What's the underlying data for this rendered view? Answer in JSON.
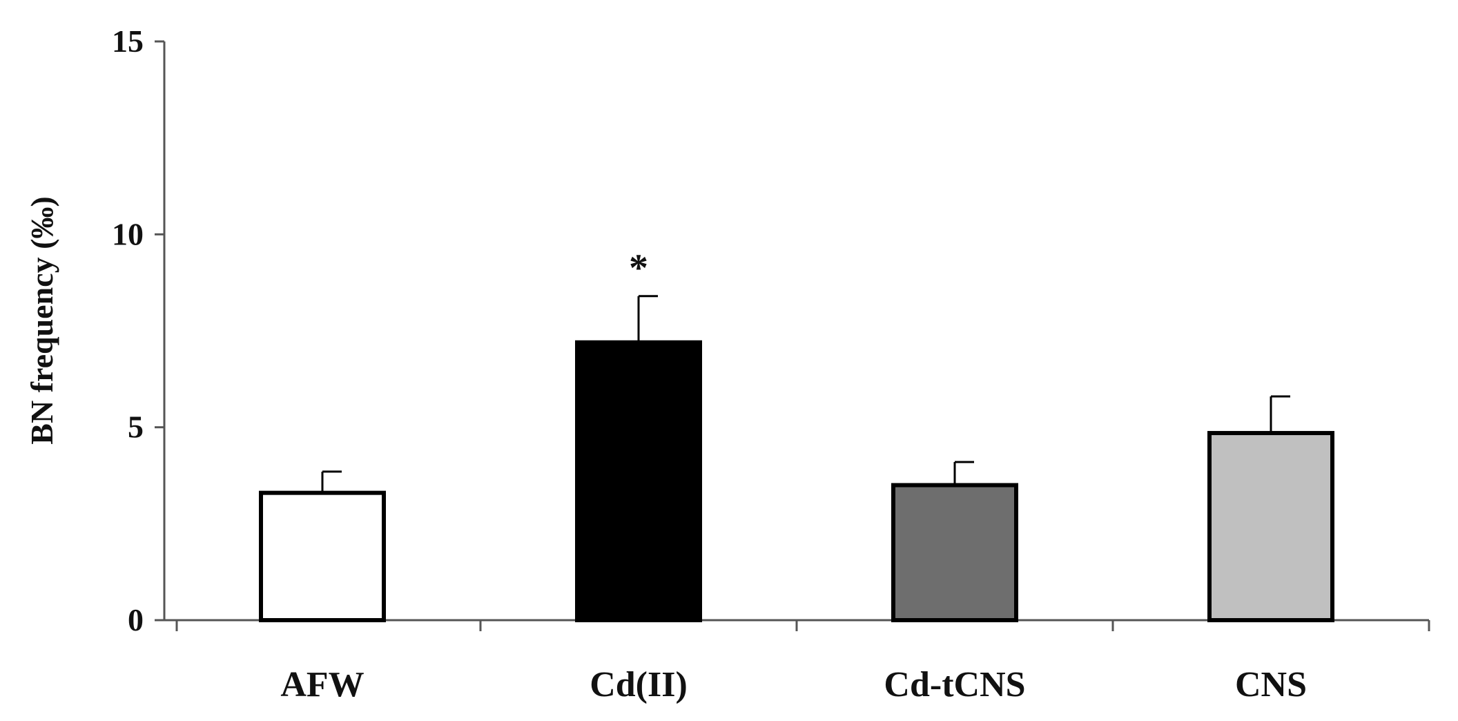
{
  "chart_data": {
    "type": "bar",
    "title": "",
    "xlabel": "",
    "ylabel": "BN frequency (‰)",
    "ylim": [
      0,
      15
    ],
    "yticks": [
      0,
      5,
      10,
      15
    ],
    "grid": false,
    "categories": [
      "AFW",
      "Cd(II)",
      "Cd-tCNS",
      "CNS"
    ],
    "values": [
      3.3,
      7.2,
      3.5,
      4.85
    ],
    "errors": [
      0.55,
      1.2,
      0.6,
      0.95
    ],
    "bar_colors": [
      "#ffffff",
      "#000000",
      "#6e6e6e",
      "#c0c0c0"
    ],
    "bar_edge_color": "#000000",
    "annotations": [
      {
        "category": "Cd(II)",
        "text": "*"
      }
    ]
  }
}
